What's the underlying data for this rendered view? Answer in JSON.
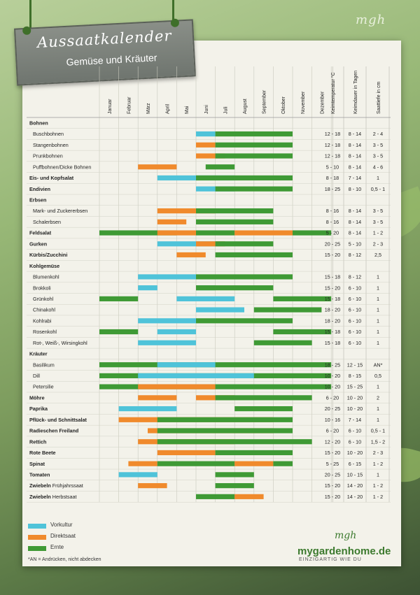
{
  "header": {
    "title": "Aussaatkalender",
    "subtitle": "Gemüse und Kräuter",
    "brand_mark": "mgh"
  },
  "footer": {
    "brand_mark": "mgh",
    "site": "mygardenhome.de",
    "slogan": "EINZIGARTIG WIE DU",
    "note": "*AN = Andrücken, nicht abdecken"
  },
  "colors": {
    "vorkultur": "#4fc3d9",
    "direktsaat": "#f08a2c",
    "ernte": "#3f9a35",
    "accent": "#3c7a2e"
  },
  "chart_data": {
    "type": "gantt",
    "months": [
      "Januar",
      "Februar",
      "März",
      "April",
      "Mai",
      "Juni",
      "Juli",
      "August",
      "September",
      "Oktober",
      "November",
      "Dezember"
    ],
    "extra_columns": [
      "Keimtemperatur °C",
      "Keimdauer in Tagen",
      "Saattiefe in cm"
    ],
    "legend": [
      {
        "key": "V",
        "label": "Vorkultur"
      },
      {
        "key": "D",
        "label": "Direktsaat"
      },
      {
        "key": "E",
        "label": "Ernte"
      }
    ],
    "rows": [
      {
        "name": "Bohnen",
        "bold": true,
        "bars": []
      },
      {
        "name": "Buschbohnen",
        "bars": [
          [
            "V",
            5,
            6
          ],
          [
            "E",
            6,
            10
          ]
        ],
        "temp": "12 - 18",
        "days": "8 - 14",
        "depth": "2 - 4"
      },
      {
        "name": "Stangenbohnen",
        "bars": [
          [
            "D",
            5,
            6
          ],
          [
            "E",
            6,
            10
          ]
        ],
        "temp": "12 - 18",
        "days": "8 - 14",
        "depth": "3 - 5"
      },
      {
        "name": "Prunkbohnen",
        "bars": [
          [
            "D",
            5,
            6.5
          ],
          [
            "E",
            6,
            10
          ]
        ],
        "temp": "12 - 18",
        "days": "8 - 14",
        "depth": "3 - 5"
      },
      {
        "name": "Puffbohnen/Dicke Bohnen",
        "bars": [
          [
            "D",
            2,
            4
          ],
          [
            "E",
            5.5,
            7
          ]
        ],
        "temp": "5 - 10",
        "days": "8 - 14",
        "depth": "4 - 6"
      },
      {
        "name": "Eis- und Kopfsalat",
        "bold": true,
        "bars": [
          [
            "V",
            3,
            7
          ],
          [
            "E",
            5,
            10
          ]
        ],
        "temp": "8 - 18",
        "days": "7 - 14",
        "depth": "1"
      },
      {
        "name": "Endivien",
        "bold": true,
        "bars": [
          [
            "V",
            5,
            7
          ],
          [
            "E",
            6,
            10
          ]
        ],
        "temp": "18 - 25",
        "days": "8 - 10",
        "depth": "0,5 - 1"
      },
      {
        "name": "Erbsen",
        "bold": true,
        "bars": []
      },
      {
        "name": "Mark- und Zuckererbsen",
        "bars": [
          [
            "D",
            3,
            6
          ],
          [
            "E",
            5,
            9
          ]
        ],
        "temp": "8 - 16",
        "days": "8 - 14",
        "depth": "3 - 5"
      },
      {
        "name": "Schalerbsen",
        "bars": [
          [
            "D",
            3,
            4.5
          ],
          [
            "E",
            5,
            9
          ]
        ],
        "temp": "8 - 16",
        "days": "8 - 14",
        "depth": "3 - 5"
      },
      {
        "name": "Feldsalat",
        "bold": true,
        "bars": [
          [
            "E",
            0,
            4
          ],
          [
            "D",
            3,
            5
          ],
          [
            "E",
            5,
            7
          ],
          [
            "D",
            7,
            10
          ],
          [
            "E",
            10,
            12
          ]
        ],
        "temp": "5 - 20",
        "days": "8 - 14",
        "depth": "1 - 2"
      },
      {
        "name": "Gurken",
        "bold": true,
        "bars": [
          [
            "V",
            3,
            6
          ],
          [
            "D",
            5,
            6.5
          ],
          [
            "E",
            6,
            9
          ]
        ],
        "temp": "20 - 25",
        "days": "5 - 10",
        "depth": "2 - 3"
      },
      {
        "name": "Kürbis/Zucchini",
        "bold": true,
        "bars": [
          [
            "D",
            4,
            5.5
          ],
          [
            "E",
            6,
            10
          ]
        ],
        "temp": "15 - 20",
        "days": "8 - 12",
        "depth": "2,5"
      },
      {
        "name": "Kohlgemüse",
        "bold": true,
        "bars": []
      },
      {
        "name": "Blumenkohl",
        "bars": [
          [
            "V",
            2,
            5
          ],
          [
            "E",
            5,
            10
          ]
        ],
        "temp": "15 - 18",
        "days": "8 - 12",
        "depth": "1"
      },
      {
        "name": "Brokkoli",
        "bars": [
          [
            "V",
            2,
            3
          ],
          [
            "V",
            5,
            6
          ],
          [
            "E",
            5,
            9
          ]
        ],
        "temp": "15 - 20",
        "days": "6 - 10",
        "depth": "1"
      },
      {
        "name": "Grünkohl",
        "bars": [
          [
            "E",
            0,
            2
          ],
          [
            "V",
            4,
            7
          ],
          [
            "E",
            9,
            12
          ]
        ],
        "temp": "15 - 18",
        "days": "6 - 10",
        "depth": "1"
      },
      {
        "name": "Chinakohl",
        "bars": [
          [
            "V",
            5,
            7.5
          ],
          [
            "E",
            8,
            11.5
          ]
        ],
        "temp": "18 - 20",
        "days": "6 - 10",
        "depth": "1"
      },
      {
        "name": "Kohlrabi",
        "bars": [
          [
            "V",
            2,
            5
          ],
          [
            "E",
            5,
            10
          ]
        ],
        "temp": "18 - 20",
        "days": "6 - 10",
        "depth": "1"
      },
      {
        "name": "Rosenkohl",
        "bars": [
          [
            "E",
            0,
            2
          ],
          [
            "V",
            3,
            5
          ],
          [
            "E",
            9,
            12
          ]
        ],
        "temp": "15 - 18",
        "days": "6 - 10",
        "depth": "1"
      },
      {
        "name": "Rot-, Weiß-, Wirsingkohl",
        "bars": [
          [
            "V",
            2,
            5
          ],
          [
            "E",
            8,
            11
          ]
        ],
        "temp": "15 - 18",
        "days": "6 - 10",
        "depth": "1"
      },
      {
        "name": "Kräuter",
        "bold": true,
        "bars": []
      },
      {
        "name": "Basilikum",
        "bars": [
          [
            "E",
            0,
            12
          ],
          [
            "V",
            3,
            6
          ]
        ],
        "temp": "18 - 25",
        "days": "12 - 15",
        "depth": "AN*"
      },
      {
        "name": "Dill",
        "bars": [
          [
            "E",
            0,
            12
          ],
          [
            "V",
            2,
            8
          ]
        ],
        "temp": "10 - 20",
        "days": "8 - 15",
        "depth": "0,5"
      },
      {
        "name": "Petersilie",
        "bars": [
          [
            "E",
            0,
            12
          ],
          [
            "D",
            2,
            6
          ]
        ],
        "temp": "10 - 20",
        "days": "15 - 25",
        "depth": "1"
      },
      {
        "name": "Möhre",
        "bold": true,
        "bars": [
          [
            "D",
            2,
            4
          ],
          [
            "D",
            5,
            7
          ],
          [
            "E",
            6,
            11
          ]
        ],
        "temp": "6 - 20",
        "days": "10 - 20",
        "depth": "2"
      },
      {
        "name": "Paprika",
        "bold": true,
        "bars": [
          [
            "V",
            1,
            4
          ],
          [
            "E",
            7,
            10
          ]
        ],
        "temp": "20 - 25",
        "days": "10 - 20",
        "depth": "1"
      },
      {
        "name": "Pflück- und Schnittsalat",
        "bold": true,
        "bars": [
          [
            "D",
            1,
            9
          ],
          [
            "E",
            3,
            10
          ]
        ],
        "temp": "10 - 16",
        "days": "7 - 14",
        "depth": "1"
      },
      {
        "name": "Radieschen Freiland",
        "bold": true,
        "bars": [
          [
            "D",
            2.5,
            9
          ],
          [
            "E",
            3,
            10
          ]
        ],
        "temp": "6 - 20",
        "days": "6 - 10",
        "depth": "0,5 - 1"
      },
      {
        "name": "Rettich",
        "bold": true,
        "bars": [
          [
            "D",
            2,
            7
          ],
          [
            "E",
            3,
            11
          ]
        ],
        "temp": "12 - 20",
        "days": "6 - 10",
        "depth": "1,5 - 2"
      },
      {
        "name": "Rote Beete",
        "bold": true,
        "bars": [
          [
            "D",
            3,
            6
          ],
          [
            "E",
            6,
            10
          ]
        ],
        "temp": "15 - 20",
        "days": "10 - 20",
        "depth": "2 - 3"
      },
      {
        "name": "Spinat",
        "bold": true,
        "bars": [
          [
            "D",
            1.5,
            3
          ],
          [
            "E",
            3,
            7
          ],
          [
            "D",
            7,
            9
          ],
          [
            "E",
            9,
            10
          ]
        ],
        "temp": "5 - 25",
        "days": "6 - 15",
        "depth": "1 - 2"
      },
      {
        "name": "Tomaten",
        "bold": true,
        "bars": [
          [
            "V",
            1,
            3
          ],
          [
            "E",
            6,
            8
          ]
        ],
        "temp": "20 - 25",
        "days": "10 - 15",
        "depth": "1"
      },
      {
        "name": "Zwiebeln",
        "suffix": "Frühjahrssaat",
        "bold": true,
        "bars": [
          [
            "D",
            2,
            3.5
          ],
          [
            "E",
            6,
            8
          ]
        ],
        "temp": "15 - 20",
        "days": "14 - 20",
        "depth": "1 - 2"
      },
      {
        "name": "Zwiebeln",
        "suffix": "Herbstsaat",
        "bold": true,
        "bars": [
          [
            "E",
            5,
            7
          ],
          [
            "D",
            7,
            8.5
          ]
        ],
        "temp": "15 - 20",
        "days": "14 - 20",
        "depth": "1 - 2"
      }
    ]
  }
}
